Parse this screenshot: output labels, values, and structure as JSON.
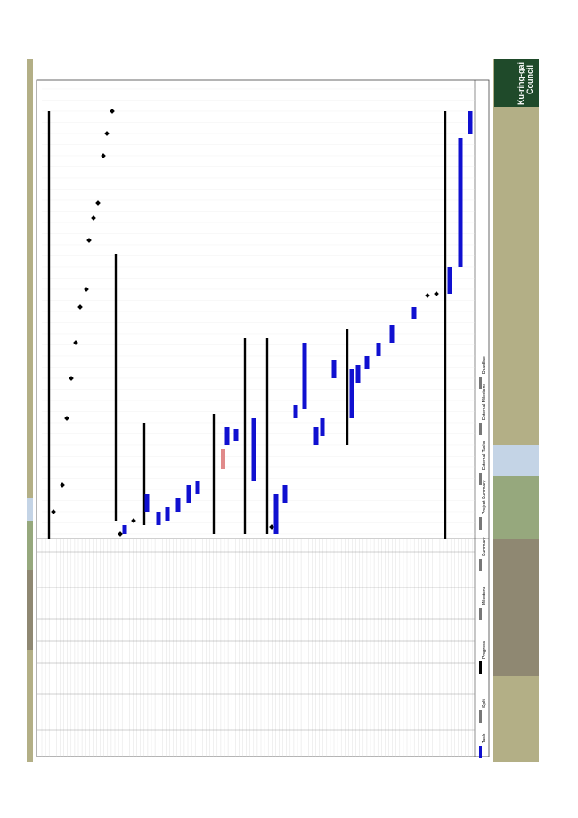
{
  "logo": {
    "line1": "Ku-ring-gai",
    "line2": "Council"
  },
  "legend": [
    "Task",
    "Split",
    "Progress",
    "Milestone",
    "Summary",
    "Project Summary",
    "External Tasks",
    "External Milestone",
    "Deadline"
  ]
}
